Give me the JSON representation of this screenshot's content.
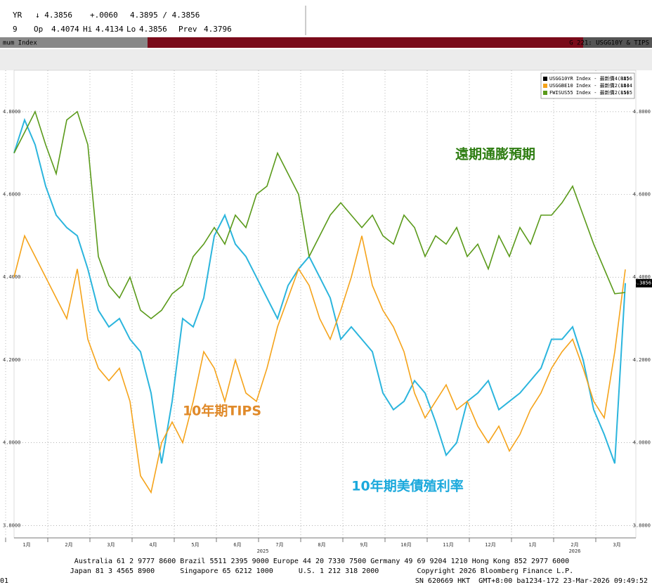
{
  "header": {
    "row1": [
      "YR",
      "↓ 4.3856",
      "+.0060",
      "4.3895 / 4.3856"
    ],
    "row2": [
      "9",
      "Op",
      "4.4074",
      "Hi",
      "4.4134",
      "Lo",
      "4.3856",
      "Prev",
      "4.3796"
    ],
    "bar_left": "mum Index",
    "bar_right": "G 221: USGG10Y & TIPS"
  },
  "chart_data": {
    "type": "line",
    "annotations": [
      {
        "text": "遠期通膨預期",
        "series": 2
      },
      {
        "text": "10年期TIPS",
        "series": 1
      },
      {
        "text": "10年期美債殖利率",
        "series": 0
      }
    ],
    "x": [
      0.7,
      0.95,
      1.2,
      1.45,
      1.7,
      1.95,
      2.2,
      2.45,
      2.7,
      2.95,
      3.2,
      3.45,
      3.7,
      3.95,
      4.2,
      4.45,
      4.7,
      4.95,
      5.2,
      5.45,
      5.7,
      5.95,
      6.2,
      6.45,
      6.7,
      6.95,
      7.2,
      7.45,
      7.7,
      7.95,
      8.2,
      8.45,
      8.7,
      8.95,
      9.2,
      9.45,
      9.7,
      9.95,
      10.2,
      10.45,
      10.7,
      10.95,
      11.2,
      11.45,
      11.7,
      11.95,
      12.2,
      12.45,
      12.7,
      12.95,
      13.2,
      13.45,
      13.7,
      13.95,
      14.2,
      14.45,
      14.7,
      14.95,
      15.2
    ],
    "xlim": [
      0.7,
      15.45
    ],
    "xticks": [
      {
        "value": 1,
        "label": "1月"
      },
      {
        "value": 2,
        "label": "2月"
      },
      {
        "value": 3,
        "label": "3月"
      },
      {
        "value": 4,
        "label": "4月"
      },
      {
        "value": 5,
        "label": "5月"
      },
      {
        "value": 6,
        "label": "6月"
      },
      {
        "value": 7,
        "label": "7月"
      },
      {
        "value": 8,
        "label": "8月"
      },
      {
        "value": 9,
        "label": "9月"
      },
      {
        "value": 10,
        "label": "10月"
      },
      {
        "value": 11,
        "label": "11月"
      },
      {
        "value": 12,
        "label": "12月"
      },
      {
        "value": 13,
        "label": "1月"
      },
      {
        "value": 14,
        "label": "2月"
      },
      {
        "value": 15,
        "label": "3月"
      }
    ],
    "year_labels": [
      {
        "value": 6.6,
        "label": "2025"
      },
      {
        "value": 14,
        "label": "2026"
      }
    ],
    "ylim": [
      3.77,
      4.9
    ],
    "yticks": [
      {
        "value": 3.8,
        "label": "3.8000"
      },
      {
        "value": 4,
        "label": "4.0000"
      },
      {
        "value": 4.2,
        "label": "4.2000"
      },
      {
        "value": 4.4,
        "label": "4.4000"
      },
      {
        "value": 4.6,
        "label": "4.6000"
      },
      {
        "value": 4.8,
        "label": "4.8000"
      }
    ],
    "y2lim": [
      2.06,
      2.625
    ],
    "grid": true,
    "legend": "top-right",
    "series": [
      {
        "name": "USGG10YR Index - 最新價 (R1)",
        "color": "#2bb5dd",
        "values": [
          4.7,
          4.78,
          4.72,
          4.62,
          4.55,
          4.52,
          4.5,
          4.42,
          4.32,
          4.28,
          4.3,
          4.25,
          4.22,
          4.12,
          3.95,
          4.1,
          4.3,
          4.28,
          4.35,
          4.5,
          4.55,
          4.48,
          4.45,
          4.4,
          4.35,
          4.3,
          4.38,
          4.42,
          4.45,
          4.4,
          4.35,
          4.25,
          4.28,
          4.25,
          4.22,
          4.12,
          4.08,
          4.1,
          4.15,
          4.12,
          4.05,
          3.97,
          4.0,
          4.1,
          4.12,
          4.15,
          4.08,
          4.1,
          4.12,
          4.15,
          4.18,
          4.25,
          4.25,
          4.28,
          4.2,
          4.08,
          4.02,
          3.95,
          4.3856
        ]
      },
      {
        "name": "USGGBE10 Index - 最新價 (L1)",
        "color": "#f5a31a",
        "axis": "y2",
        "values": [
          2.375,
          2.425,
          2.4,
          2.375,
          2.35,
          2.325,
          2.385,
          2.3,
          2.265,
          2.25,
          2.265,
          2.225,
          2.135,
          2.115,
          2.175,
          2.2,
          2.175,
          2.225,
          2.285,
          2.265,
          2.225,
          2.275,
          2.235,
          2.225,
          2.265,
          2.315,
          2.35,
          2.385,
          2.365,
          2.325,
          2.3,
          2.335,
          2.375,
          2.425,
          2.365,
          2.335,
          2.315,
          2.285,
          2.235,
          2.205,
          2.225,
          2.245,
          2.215,
          2.225,
          2.195,
          2.175,
          2.195,
          2.165,
          2.185,
          2.215,
          2.235,
          2.265,
          2.285,
          2.3,
          2.265,
          2.225,
          2.205,
          2.285,
          2.3844
        ]
      },
      {
        "name": "FWISUS55 Index - 最新價 (L1)",
        "color": "#5a9a1a",
        "axis": "y2",
        "values": [
          2.525,
          2.55,
          2.575,
          2.535,
          2.5,
          2.565,
          2.575,
          2.535,
          2.4,
          2.365,
          2.35,
          2.375,
          2.335,
          2.325,
          2.335,
          2.355,
          2.365,
          2.4,
          2.415,
          2.435,
          2.415,
          2.45,
          2.435,
          2.475,
          2.485,
          2.525,
          2.5,
          2.475,
          2.4,
          2.425,
          2.45,
          2.465,
          2.45,
          2.435,
          2.45,
          2.425,
          2.415,
          2.45,
          2.435,
          2.4,
          2.425,
          2.415,
          2.435,
          2.4,
          2.415,
          2.385,
          2.425,
          2.4,
          2.435,
          2.415,
          2.45,
          2.45,
          2.465,
          2.485,
          2.45,
          2.415,
          2.385,
          2.355,
          2.3565
        ]
      }
    ]
  },
  "footer": [
    "Australia 61 2 9777 8600 Brazil 5511 2395 9000 Europe 44 20 7330 7500 Germany 49 69 9204 1210 Hong Kong 852 2977 6000",
    "Japan 81 3 4565 8900      Singapore 65 6212 1000      U.S. 1 212 318 2000         Copyright 2026 Bloomberg Finance L.P.",
    "SN 620669 HKT  GMT+8:00 ba1234-172 23-Mar-2026 09:49:52",
    "01"
  ]
}
